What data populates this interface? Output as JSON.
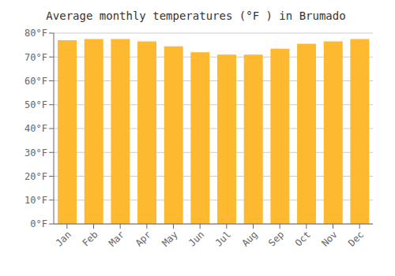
{
  "chart_data": {
    "type": "bar",
    "title": "Average monthly temperatures (°F ) in Brumado",
    "categories": [
      "Jan",
      "Feb",
      "Mar",
      "Apr",
      "May",
      "Jun",
      "Jul",
      "Aug",
      "Sep",
      "Oct",
      "Nov",
      "Dec"
    ],
    "values": [
      77,
      77.5,
      77.5,
      76.5,
      74.5,
      72,
      71,
      71,
      73.5,
      75.5,
      76.5,
      77.5
    ],
    "color": "#FDB930",
    "ylim": [
      0,
      80
    ],
    "yticks": [
      {
        "value": 0,
        "label": "0°F"
      },
      {
        "value": 10,
        "label": "10°F"
      },
      {
        "value": 20,
        "label": "20°F"
      },
      {
        "value": 30,
        "label": "30°F"
      },
      {
        "value": 40,
        "label": "40°F"
      },
      {
        "value": 50,
        "label": "50°F"
      },
      {
        "value": 60,
        "label": "60°F"
      },
      {
        "value": 70,
        "label": "70°F"
      },
      {
        "value": 80,
        "label": "80°F"
      }
    ],
    "grid": true
  }
}
